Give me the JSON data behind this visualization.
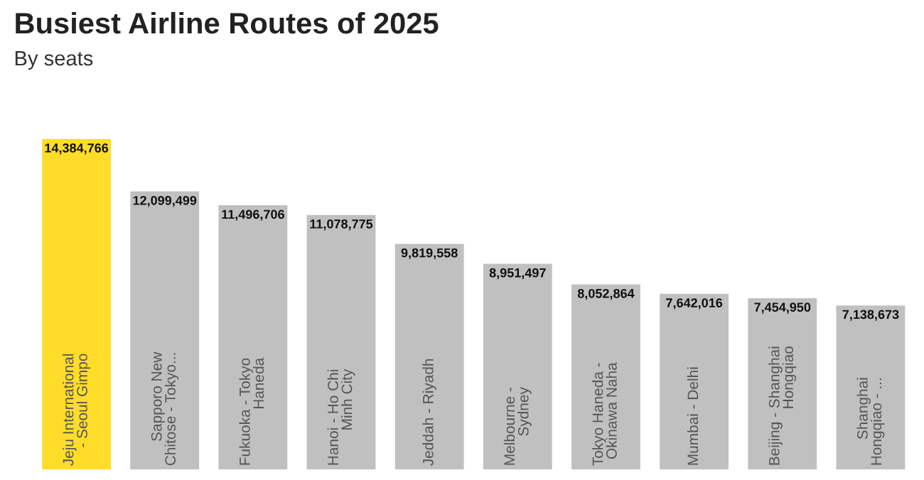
{
  "chart_data": {
    "type": "bar",
    "title": "Busiest Airline Routes of 2025",
    "subtitle": "By seats",
    "categories": [
      "Jeju International\n- Seoul Gimpo",
      "Sapporo New\nChitose - Tokyo...",
      "Fukuoka - Tokyo\nHaneda",
      "Hanoi - Ho Chi\nMinh City",
      "Jeddah - Riyadh",
      "Melbourne -\nSydney",
      "Tokyo Haneda -\nOkinawa Naha",
      "Mumbai - Delhi",
      "Beijing - Shanghai\nHongqiao",
      "Shanghai\nHongqiao - ..."
    ],
    "values": [
      14384766,
      12099499,
      11496706,
      11078775,
      9819558,
      8951497,
      8052864,
      7642016,
      7454950,
      7138673
    ],
    "colors": [
      "#fddd2a",
      "#c0c0c0",
      "#c0c0c0",
      "#c0c0c0",
      "#c0c0c0",
      "#c0c0c0",
      "#c0c0c0",
      "#c0c0c0",
      "#c0c0c0",
      "#c0c0c0"
    ],
    "value_labels": [
      "14,384,766",
      "12,099,499",
      "11,496,706",
      "11,078,775",
      "9,819,558",
      "8,951,497",
      "8,052,864",
      "7,642,016",
      "7,454,950",
      "7,138,673"
    ]
  }
}
